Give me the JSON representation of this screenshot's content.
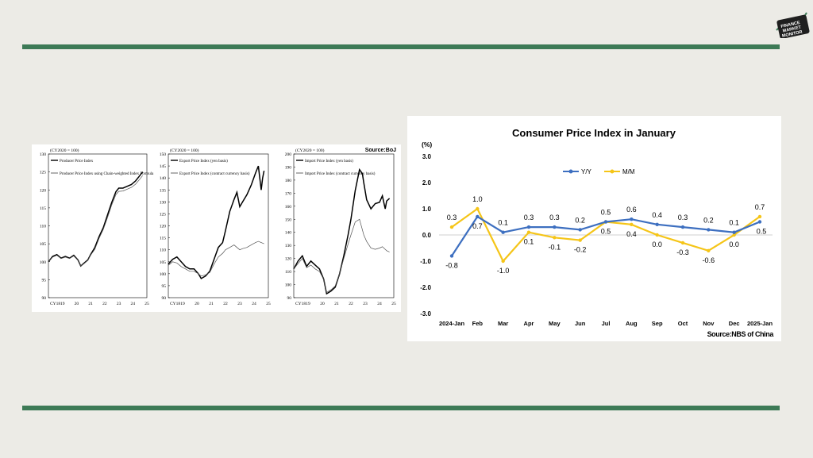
{
  "logo": {
    "lines": [
      "FINANCE",
      "MARKET",
      "MONITOR"
    ]
  },
  "colors": {
    "bar": "#3d7a56",
    "yy": "#3d6fc0",
    "mm": "#f5c518",
    "axis": "#000000"
  },
  "boj": {
    "source": "Source:BoJ",
    "charts": [
      {
        "base": "(CY2020 = 100)",
        "ylim": [
          90,
          130
        ],
        "yticks": [
          90,
          95,
          100,
          105,
          110,
          115,
          120,
          125,
          130
        ],
        "xticks": [
          "CY18",
          "19",
          "20",
          "21",
          "22",
          "23",
          "24",
          "25"
        ],
        "legend": [
          "Producer Price Index",
          "Producer Price Index using Chain-weighted Index Formula"
        ],
        "series": [
          {
            "name": "Producer Price Index",
            "x": [
              2018.0,
              2018.3,
              2018.6,
              2018.9,
              2019.2,
              2019.5,
              2019.8,
              2020.1,
              2020.3,
              2020.5,
              2020.8,
              2021.0,
              2021.3,
              2021.6,
              2021.9,
              2022.2,
              2022.5,
              2022.8,
              2023.0,
              2023.3,
              2023.6,
              2023.9,
              2024.2,
              2024.5,
              2024.7
            ],
            "y": [
              100,
              101.5,
              102,
              101,
              101.5,
              101,
              101.8,
              100.5,
              98.8,
              99.5,
              100.5,
              102,
              104,
              107,
              109.5,
              113,
              116.5,
              119.5,
              120.5,
              120.5,
              121,
              121.5,
              122.5,
              124,
              125
            ]
          },
          {
            "name": "Producer Price Index using Chain-weighted Index Formula",
            "x": [
              2018.0,
              2018.3,
              2018.6,
              2018.9,
              2019.2,
              2019.5,
              2019.8,
              2020.1,
              2020.3,
              2020.5,
              2020.8,
              2021.0,
              2021.3,
              2021.6,
              2021.9,
              2022.2,
              2022.5,
              2022.8,
              2023.0,
              2023.3,
              2023.6,
              2023.9,
              2024.2,
              2024.5,
              2024.7
            ],
            "y": [
              100,
              101.3,
              101.8,
              100.9,
              101.3,
              100.9,
              101.6,
              100.4,
              98.8,
              99.4,
              100.4,
              101.8,
              103.5,
              106.5,
              109,
              112.3,
              115.8,
              118.7,
              119.6,
              119.7,
              120.2,
              120.7,
              121.6,
              123,
              124
            ]
          }
        ]
      },
      {
        "base": "(CY2020 = 100)",
        "ylim": [
          90,
          150
        ],
        "yticks": [
          90,
          95,
          100,
          105,
          110,
          115,
          120,
          125,
          130,
          135,
          140,
          145,
          150
        ],
        "xticks": [
          "CY18",
          "19",
          "20",
          "21",
          "22",
          "23",
          "24",
          "25"
        ],
        "legend": [
          "Export Price Index (yen basis)",
          "Export Price Index (contract currency basis)"
        ],
        "series": [
          {
            "name": "Export Price Index (yen basis)",
            "x": [
              2018.0,
              2018.3,
              2018.6,
              2018.9,
              2019.2,
              2019.5,
              2019.8,
              2020.1,
              2020.3,
              2020.6,
              2020.9,
              2021.2,
              2021.5,
              2021.8,
              2022.0,
              2022.3,
              2022.6,
              2022.8,
              2023.0,
              2023.2,
              2023.5,
              2023.8,
              2024.1,
              2024.3,
              2024.5,
              2024.6,
              2024.7
            ],
            "y": [
              104,
              106,
              107,
              105,
              103,
              102,
              102,
              100,
              98,
              99,
              101,
              106,
              111,
              113,
              118,
              126,
              131,
              134,
              128,
              130,
              133,
              137,
              142,
              145,
              135,
              140,
              143
            ]
          },
          {
            "name": "Export Price Index (contract currency basis)",
            "x": [
              2018.0,
              2018.3,
              2018.6,
              2018.9,
              2019.2,
              2019.5,
              2019.8,
              2020.1,
              2020.3,
              2020.6,
              2020.9,
              2021.2,
              2021.5,
              2021.8,
              2022.0,
              2022.3,
              2022.6,
              2022.8,
              2023.0,
              2023.2,
              2023.5,
              2023.8,
              2024.1,
              2024.3,
              2024.5,
              2024.7
            ],
            "y": [
              103.5,
              105,
              104.5,
              103,
              102,
              101,
              101,
              100,
              99,
              99.5,
              100.5,
              104,
              107,
              108.5,
              110,
              111,
              112,
              111,
              110,
              110.5,
              111,
              112,
              113,
              113.5,
              113,
              112.5
            ]
          }
        ]
      },
      {
        "base": "(CY2020 = 100)",
        "ylim": [
          90,
          200
        ],
        "yticks": [
          90,
          100,
          110,
          120,
          130,
          140,
          150,
          160,
          170,
          180,
          190,
          200
        ],
        "xticks": [
          "CY18",
          "19",
          "20",
          "21",
          "22",
          "23",
          "24",
          "25"
        ],
        "legend": [
          "Import Price Index (yen basis)",
          "Import Price Index (contract currency basis)"
        ],
        "series": [
          {
            "name": "Import Price Index (yen basis)",
            "x": [
              2018.0,
              2018.3,
              2018.6,
              2018.9,
              2019.2,
              2019.5,
              2019.8,
              2020.1,
              2020.3,
              2020.6,
              2020.9,
              2021.2,
              2021.5,
              2021.8,
              2022.0,
              2022.3,
              2022.6,
              2022.8,
              2022.9,
              2023.1,
              2023.4,
              2023.7,
              2024.0,
              2024.2,
              2024.4,
              2024.5,
              2024.7
            ],
            "y": [
              112,
              118,
              122,
              114,
              118,
              115,
              112,
              104,
              93,
              95,
              98,
              108,
              122,
              138,
              150,
              172,
              188,
              185,
              178,
              165,
              158,
              162,
              163,
              168,
              158,
              164,
              166
            ]
          },
          {
            "name": "Import Price Index (contract currency basis)",
            "x": [
              2018.0,
              2018.3,
              2018.6,
              2018.9,
              2019.2,
              2019.5,
              2019.8,
              2020.1,
              2020.3,
              2020.6,
              2020.9,
              2021.2,
              2021.5,
              2021.8,
              2022.0,
              2022.3,
              2022.6,
              2022.8,
              2022.9,
              2023.1,
              2023.4,
              2023.7,
              2024.0,
              2024.2,
              2024.4,
              2024.5,
              2024.7
            ],
            "y": [
              112,
              116,
              120,
              113,
              115,
              112,
              110,
              104,
              94,
              96,
              99,
              108,
              120,
              131,
              138,
              148,
              150,
              142,
              138,
              133,
              128,
              127,
              128,
              129,
              127,
              126,
              125
            ]
          }
        ]
      }
    ]
  },
  "chart_data": {
    "type": "line",
    "title": "Consumer Price Index in January",
    "ylabel": "(%)",
    "source": "Source:NBS of China",
    "ylim": [
      -3.0,
      3.0
    ],
    "yticks": [
      "3.0",
      "2.0",
      "1.0",
      "0.0",
      "-1.0",
      "-2.0",
      "-3.0"
    ],
    "categories": [
      "2024-Jan",
      "Feb",
      "Mar",
      "Apr",
      "May",
      "Jun",
      "Jul",
      "Aug",
      "Sep",
      "Oct",
      "Nov",
      "Dec",
      "2025-Jan"
    ],
    "series": [
      {
        "name": "Y/Y",
        "values": [
          -0.8,
          0.7,
          0.1,
          0.3,
          0.3,
          0.2,
          0.5,
          0.6,
          0.4,
          0.3,
          0.2,
          0.1,
          0.5
        ],
        "labels": [
          "-0.8",
          "0.7",
          "0.1",
          "0.3",
          "0.3",
          "0.2",
          "0.5",
          "0.6",
          "0.4",
          "0.3",
          "0.2",
          "0.1",
          "0.5"
        ]
      },
      {
        "name": "M/M",
        "values": [
          0.3,
          1.0,
          -1.0,
          0.1,
          -0.1,
          -0.2,
          0.5,
          0.4,
          0.0,
          -0.3,
          -0.6,
          0.0,
          0.7
        ],
        "labels": [
          "0.3",
          "1.0",
          "-1.0",
          "0.1",
          "-0.1",
          "-0.2",
          "0.5",
          "0.4",
          "0.0",
          "-0.3",
          "-0.6",
          "0.0",
          "0.7"
        ]
      }
    ],
    "legend_position": "top-center",
    "grid": false
  }
}
